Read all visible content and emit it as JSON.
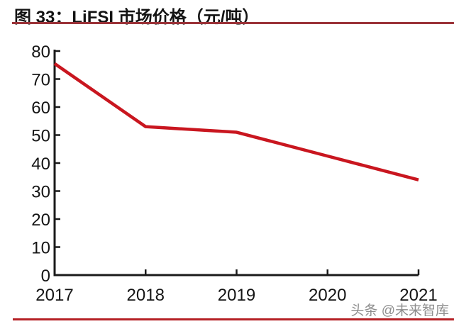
{
  "figure": {
    "title": "图 33：LiFSI 市场价格（元/吨）"
  },
  "watermark": "头条 @未来智库",
  "colors": {
    "series_line": "#c9161f",
    "title_underline": "#9b3339",
    "bottom_rule": "#b52025",
    "axis": "#1a1a1a",
    "tick_text": "#151515",
    "watermark_text": "#8e8e8e"
  },
  "chart_data": {
    "type": "line",
    "title": "图 33：LiFSI 市场价格（元/吨）",
    "series_name": "LiFSI 市场价格",
    "x": [
      "2017",
      "2018",
      "2019",
      "2020",
      "2021"
    ],
    "values": [
      75.5,
      53,
      51,
      42.5,
      34
    ],
    "xlabel": "",
    "ylabel": "",
    "ylim": [
      0,
      80
    ],
    "ytick_step": 10,
    "yticks": [
      0,
      10,
      20,
      30,
      40,
      50,
      60,
      70,
      80
    ],
    "grid": false,
    "legend": false,
    "line_color": "#c9161f"
  }
}
